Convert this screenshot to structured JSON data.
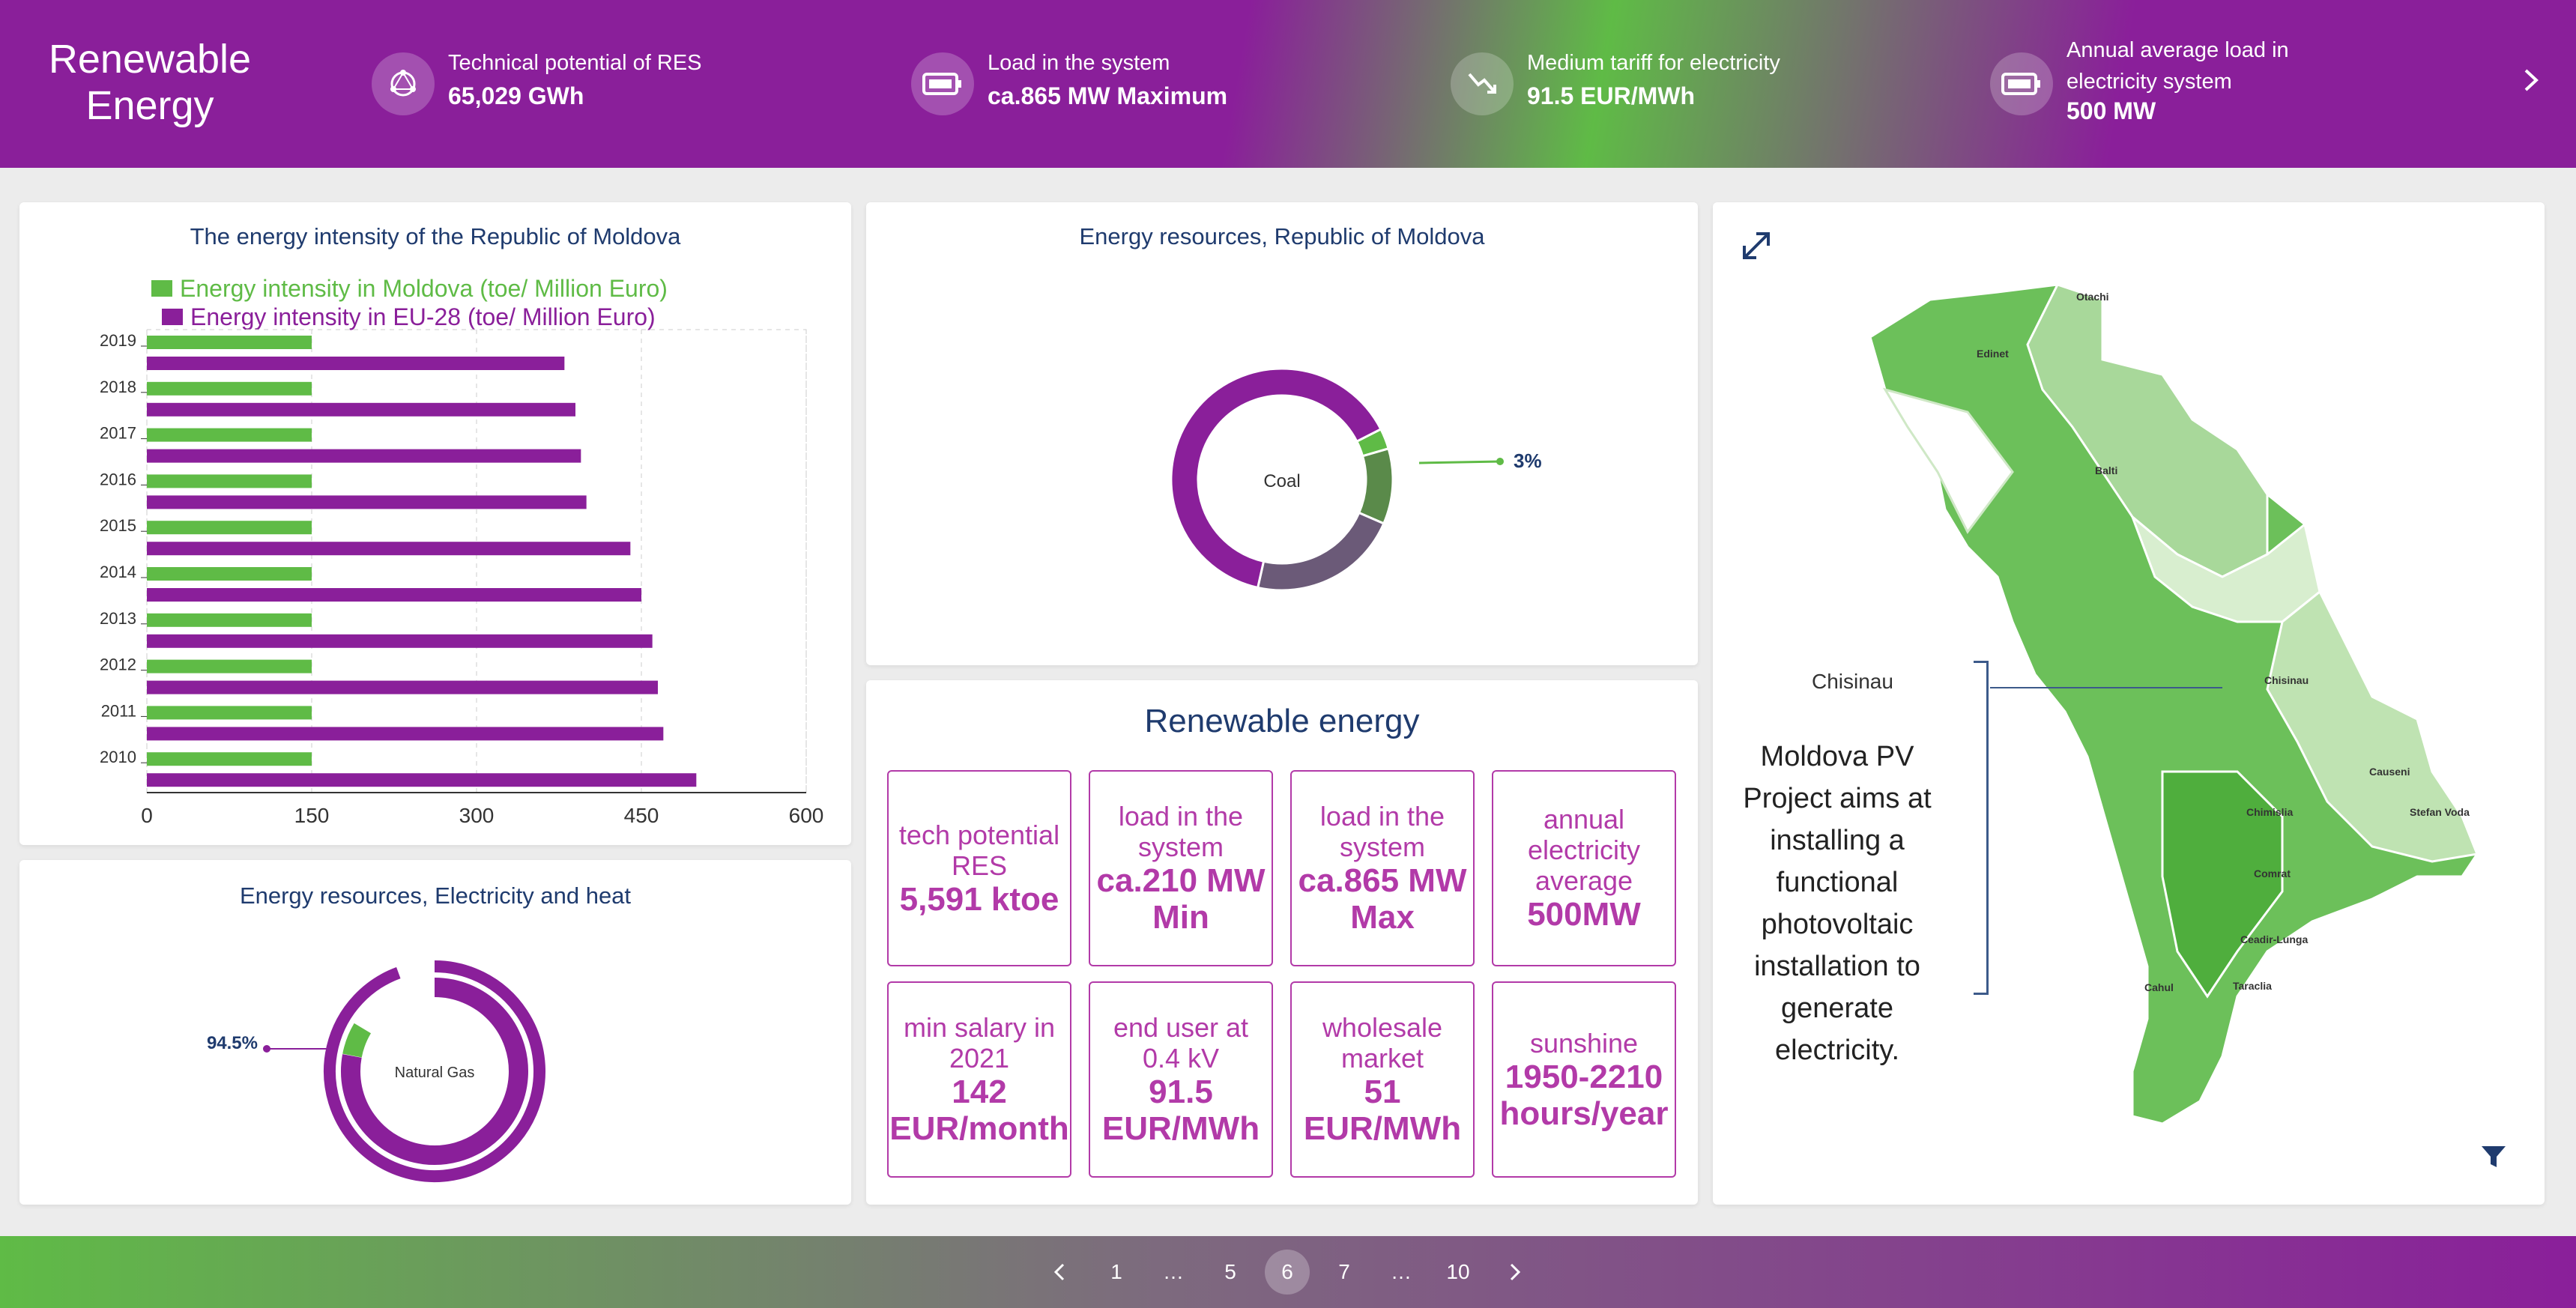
{
  "header": {
    "brand": "Renewable Energy",
    "kpis": [
      {
        "label": "Technical potential of RES",
        "value": "65,029 GWh",
        "icon": "molecule-icon"
      },
      {
        "label": "Load in the system",
        "value": "ca.865 MW Maximum",
        "icon": "battery-icon"
      },
      {
        "label": "Medium tariff for electricity",
        "value": "91.5 EUR/MWh",
        "icon": "trend-down-icon"
      },
      {
        "label": "Annual average load in electricity system",
        "value": "500 MW",
        "icon": "battery-icon"
      }
    ],
    "next_icon": "chevron-right-icon"
  },
  "bar_card": {
    "title": "The energy intensity of the Republic of Moldova"
  },
  "donut_card": {
    "title": "Energy resources, Republic of Moldova"
  },
  "bottom_card": {
    "title": "Energy resources, Electricity and heat"
  },
  "renewable": {
    "title": "Renewable energy",
    "boxes": [
      {
        "label": "tech potential RES",
        "value": "5,591 ktoe"
      },
      {
        "label": "load in the system",
        "value": "ca.210 MW Min"
      },
      {
        "label": "load in the system",
        "value": "ca.865 MW Max"
      },
      {
        "label": "annual electricity average",
        "value": "500MW"
      },
      {
        "label": "min salary in 2021",
        "value": "142 EUR/month"
      },
      {
        "label": "end user at 0.4 kV",
        "value": "91.5 EUR/MWh"
      },
      {
        "label": "wholesale market",
        "value": "51 EUR/MWh"
      },
      {
        "label": "sunshine",
        "value": "1950-2210 hours/year"
      }
    ]
  },
  "map": {
    "city": "Chisinau",
    "text": "Moldova PV Project aims at installing a functional photovoltaic installation to generate electricity.",
    "places": [
      "Otachi",
      "Edinet",
      "Balti",
      "Chisinau",
      "Causeni",
      "Chimislia",
      "Stefan Voda",
      "Comrat",
      "Ceadir-Lunga",
      "Cahul",
      "Taraclia"
    ]
  },
  "pagination": {
    "pages": [
      "1",
      "…",
      "5",
      "6",
      "7",
      "…",
      "10"
    ],
    "active": "6"
  },
  "colors": {
    "purple": "#8a1f9a",
    "green": "#5fbb46",
    "navy": "#1f3b6e",
    "pink": "#b23aa8"
  },
  "chart_data": [
    {
      "type": "bar",
      "orientation": "horizontal",
      "title": "The energy intensity of the Republic of Moldova",
      "categories": [
        "2019",
        "2018",
        "2017",
        "2016",
        "2015",
        "2014",
        "2013",
        "2012",
        "2011",
        "2010"
      ],
      "series": [
        {
          "name": "Energy intensity in Moldova (toe/ Million Euro)",
          "color": "#5fbb46",
          "values": [
            150,
            150,
            150,
            150,
            150,
            150,
            150,
            150,
            150,
            150
          ]
        },
        {
          "name": "Energy intensity in EU-28 (toe/ Million Euro)",
          "color": "#8a1f9a",
          "values": [
            380,
            390,
            395,
            400,
            440,
            450,
            460,
            465,
            470,
            500
          ]
        }
      ],
      "xticks": [
        "0",
        "150",
        "300",
        "450",
        "600"
      ],
      "xlim": [
        0,
        600
      ],
      "grid": true,
      "legend": "top-left"
    },
    {
      "type": "pie",
      "style": "donut",
      "title": "Energy resources, Republic of Moldova",
      "center_label": "Coal",
      "slices": [
        {
          "value": 3,
          "color": "#5fbb46"
        },
        {
          "value": 11,
          "color": "#5a8a4a"
        },
        {
          "value": 22,
          "color": "#6b5a78"
        },
        {
          "value": 64,
          "color": "#8a1f9a"
        }
      ],
      "annotations": [
        "3%"
      ]
    },
    {
      "type": "pie",
      "style": "radial",
      "title": "Energy resources, Electricity and heat",
      "center_label": "Natural Gas",
      "slices": [
        {
          "value": 94.5,
          "color": "#8a1f9a"
        },
        {
          "value": 5.5,
          "color": "#5fbb46"
        }
      ],
      "annotations": [
        "94.5%"
      ]
    }
  ]
}
